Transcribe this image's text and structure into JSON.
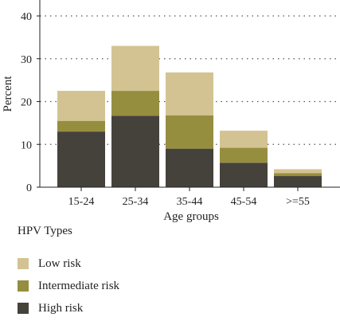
{
  "chart_data": {
    "type": "bar",
    "stacked": true,
    "categories": [
      "15-24",
      "25-34",
      "35-44",
      "45-54",
      ">=55"
    ],
    "series": [
      {
        "name": "High risk",
        "color": "#45423c",
        "values": [
          13,
          16.7,
          9,
          5.7,
          2.6
        ]
      },
      {
        "name": "Intermediate risk",
        "color": "#968e3f",
        "values": [
          2.5,
          5.8,
          7.8,
          3.5,
          0.7
        ]
      },
      {
        "name": "Low risk",
        "color": "#d4c392",
        "values": [
          7,
          10.5,
          10,
          4,
          0.9
        ]
      }
    ],
    "xlabel": "Age groups",
    "ylabel": "Percent",
    "ylim": [
      0,
      40
    ],
    "yticks": [
      0,
      10,
      20,
      30,
      40
    ],
    "grid": "horizontal dotted",
    "legend": {
      "title": "HPV Types",
      "position": "bottom-left",
      "order": [
        "Low risk",
        "Intermediate risk",
        "High risk"
      ]
    }
  }
}
